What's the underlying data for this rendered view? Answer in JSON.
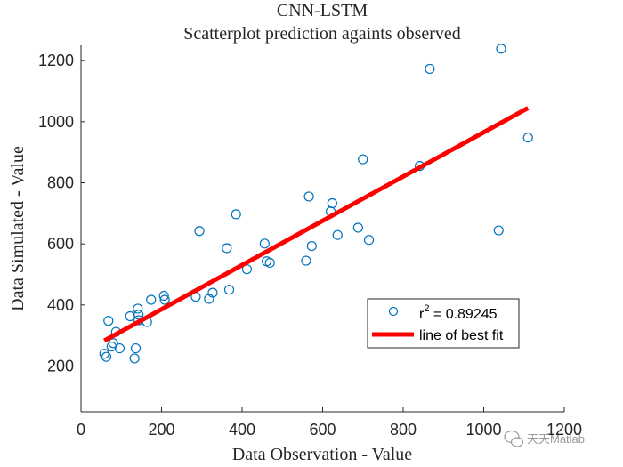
{
  "chart_data": {
    "type": "scatter",
    "title": "CNN-LSTM",
    "subtitle": "Scatterplot prediction againts observed",
    "xlabel": "Data Observation - Value",
    "ylabel": "Data Simulated - Value",
    "xlim": [
      0,
      1200
    ],
    "ylim": [
      50,
      1250
    ],
    "xticks": [
      0,
      200,
      400,
      600,
      800,
      1000,
      1200
    ],
    "yticks": [
      200,
      400,
      600,
      800,
      1000,
      1200
    ],
    "grid": false,
    "legend_position": "lower-right",
    "series": [
      {
        "name": "r",
        "name_superscript": "2",
        "name_suffix": " = 0.89245",
        "marker": "open-circle",
        "color": "#0072BD",
        "points": [
          [
            58,
            240
          ],
          [
            63,
            230
          ],
          [
            68,
            348
          ],
          [
            76,
            264
          ],
          [
            80,
            275
          ],
          [
            87,
            312
          ],
          [
            96,
            258
          ],
          [
            122,
            363
          ],
          [
            133,
            225
          ],
          [
            136,
            258
          ],
          [
            141,
            388
          ],
          [
            143,
            368
          ],
          [
            143,
            350
          ],
          [
            164,
            344
          ],
          [
            174,
            417
          ],
          [
            206,
            430
          ],
          [
            208,
            417
          ],
          [
            285,
            427
          ],
          [
            294,
            642
          ],
          [
            318,
            420
          ],
          [
            327,
            440
          ],
          [
            362,
            586
          ],
          [
            368,
            450
          ],
          [
            385,
            697
          ],
          [
            412,
            517
          ],
          [
            456,
            601
          ],
          [
            461,
            543
          ],
          [
            469,
            538
          ],
          [
            559,
            545
          ],
          [
            566,
            755
          ],
          [
            573,
            593
          ],
          [
            620,
            706
          ],
          [
            624,
            733
          ],
          [
            637,
            629
          ],
          [
            688,
            653
          ],
          [
            700,
            877
          ],
          [
            715,
            613
          ],
          [
            841,
            855
          ],
          [
            866,
            1173
          ],
          [
            1037,
            644
          ],
          [
            1043,
            1239
          ],
          [
            1110,
            948
          ]
        ]
      },
      {
        "name": "line of best fit",
        "type": "line",
        "color": "#FF0000",
        "x": [
          58,
          1110
        ],
        "y": [
          283,
          1045
        ]
      }
    ]
  },
  "watermark": {
    "icon": "wechat-icon",
    "text": "天天Matlab"
  }
}
